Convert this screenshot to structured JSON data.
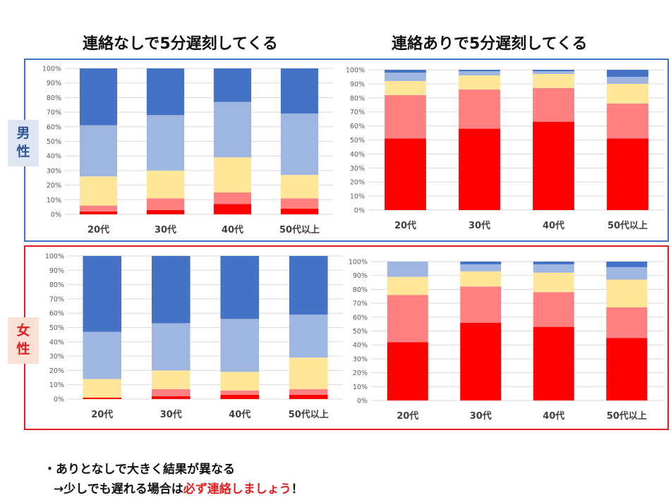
{
  "titles": {
    "left": "連絡なしで5分遅刻してくる",
    "right": "連絡ありで5分遅刻してくる"
  },
  "side_labels": {
    "male": [
      "男",
      "性"
    ],
    "female": [
      "女",
      "性"
    ]
  },
  "notes": {
    "line1": "・ありとなしで大きく結果が異なる",
    "line2_prefix": "→少しでも遅れる場合は",
    "line2_emphasis": "必ず連絡しましょう",
    "line2_suffix": "！"
  },
  "colors": {
    "segments": [
      "#ff0000",
      "#ff8080",
      "#ffe699",
      "#9fb6e0",
      "#4472c4"
    ],
    "male_border": "#4472c4",
    "female_border": "#e02020",
    "emphasis": "#e02020"
  },
  "chart_data": [
    {
      "id": "male_no_contact",
      "type": "bar",
      "stacked": true,
      "categories": [
        "20代",
        "30代",
        "40代",
        "50代以上"
      ],
      "yticks": [
        "0%",
        "10%",
        "20%",
        "30%",
        "40%",
        "50%",
        "60%",
        "70%",
        "80%",
        "90%",
        "100%"
      ],
      "ylim": [
        0,
        100
      ],
      "series": [
        {
          "values": [
            2,
            3,
            7,
            4
          ]
        },
        {
          "values": [
            4,
            8,
            8,
            7
          ]
        },
        {
          "values": [
            20,
            19,
            24,
            16
          ]
        },
        {
          "values": [
            35,
            38,
            38,
            42
          ]
        },
        {
          "values": [
            39,
            32,
            23,
            31
          ]
        }
      ]
    },
    {
      "id": "male_with_contact",
      "type": "bar",
      "stacked": true,
      "categories": [
        "20代",
        "30代",
        "40代",
        "50代以上"
      ],
      "yticks": [
        "0%",
        "10%",
        "20%",
        "30%",
        "40%",
        "50%",
        "60%",
        "70%",
        "80%",
        "90%",
        "100%"
      ],
      "ylim": [
        0,
        100
      ],
      "series": [
        {
          "values": [
            51,
            58,
            63,
            51
          ]
        },
        {
          "values": [
            31,
            28,
            24,
            25
          ]
        },
        {
          "values": [
            10,
            10,
            10,
            14
          ]
        },
        {
          "values": [
            6,
            3,
            2,
            5
          ]
        },
        {
          "values": [
            2,
            1,
            1,
            5
          ]
        }
      ]
    },
    {
      "id": "female_no_contact",
      "type": "bar",
      "stacked": true,
      "categories": [
        "20代",
        "30代",
        "40代",
        "50代以上"
      ],
      "yticks": [
        "0%",
        "10%",
        "20%",
        "30%",
        "40%",
        "50%",
        "60%",
        "70%",
        "80%",
        "90%",
        "100%"
      ],
      "ylim": [
        0,
        100
      ],
      "series": [
        {
          "values": [
            1,
            2,
            3,
            3
          ]
        },
        {
          "values": [
            0,
            5,
            3,
            4
          ]
        },
        {
          "values": [
            13,
            13,
            13,
            22
          ]
        },
        {
          "values": [
            33,
            33,
            37,
            30
          ]
        },
        {
          "values": [
            53,
            47,
            44,
            41
          ]
        }
      ]
    },
    {
      "id": "female_with_contact",
      "type": "bar",
      "stacked": true,
      "categories": [
        "20代",
        "30代",
        "40代",
        "50代以上"
      ],
      "yticks": [
        "0%",
        "10%",
        "20%",
        "30%",
        "40%",
        "50%",
        "60%",
        "70%",
        "80%",
        "90%",
        "100%"
      ],
      "ylim": [
        0,
        100
      ],
      "series": [
        {
          "values": [
            42,
            56,
            53,
            45
          ]
        },
        {
          "values": [
            34,
            26,
            25,
            22
          ]
        },
        {
          "values": [
            13,
            11,
            14,
            20
          ]
        },
        {
          "values": [
            11,
            5,
            6,
            9
          ]
        },
        {
          "values": [
            0,
            2,
            2,
            4
          ]
        }
      ]
    }
  ]
}
